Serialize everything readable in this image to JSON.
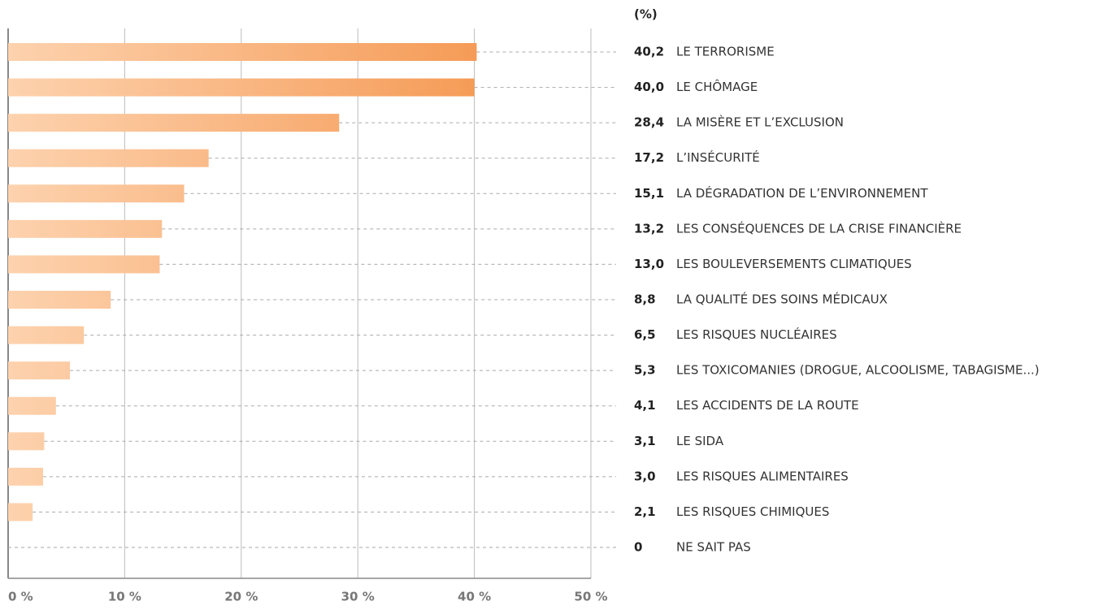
{
  "chart_data": {
    "type": "barh",
    "unit_label": "(%)",
    "categories": [
      "LE TERRORISME",
      "LE CHÔMAGE",
      "LA MISÈRE ET L’EXCLUSION",
      "L’INSÉCURITÉ",
      "LA DÉGRADATION DE L’ENVIRONNEMENT",
      "LES CONSÉQUENCES DE LA CRISE FINANCIÈRE",
      "LES BOULEVERSEMENTS CLIMATIQUES",
      "LA QUALITÉ DES SOINS MÉDICAUX",
      "LES RISQUES NUCLÉAIRES",
      "LES TOXICOMANIES (DROGUE, ALCOOLISME, TABAGISME...)",
      "LES ACCIDENTS DE LA ROUTE",
      "LE SIDA",
      "LES RISQUES ALIMENTAIRES",
      "LES RISQUES CHIMIQUES",
      "NE SAIT PAS"
    ],
    "values": [
      40.2,
      40.0,
      28.4,
      17.2,
      15.1,
      13.2,
      13.0,
      8.8,
      6.5,
      5.3,
      4.1,
      3.1,
      3.0,
      2.1,
      0
    ],
    "value_labels": [
      "40,2",
      "40,0",
      "28,4",
      "17,2",
      "15,1",
      "13,2",
      "13,0",
      "8,8",
      "6,5",
      "5,3",
      "4,1",
      "3,1",
      "3,0",
      "2,1",
      "0"
    ],
    "colors": [
      "#fdd2ae",
      "#f59a55"
    ],
    "xlim": [
      0,
      50
    ],
    "xticks": [
      {
        "value": 0,
        "label": "0 %"
      },
      {
        "value": 10,
        "label": "10 %"
      },
      {
        "value": 20,
        "label": "20 %"
      },
      {
        "value": 30,
        "label": "30 %"
      },
      {
        "value": 40,
        "label": "40 %"
      },
      {
        "value": 50,
        "label": "50 %"
      }
    ],
    "grid": true
  }
}
